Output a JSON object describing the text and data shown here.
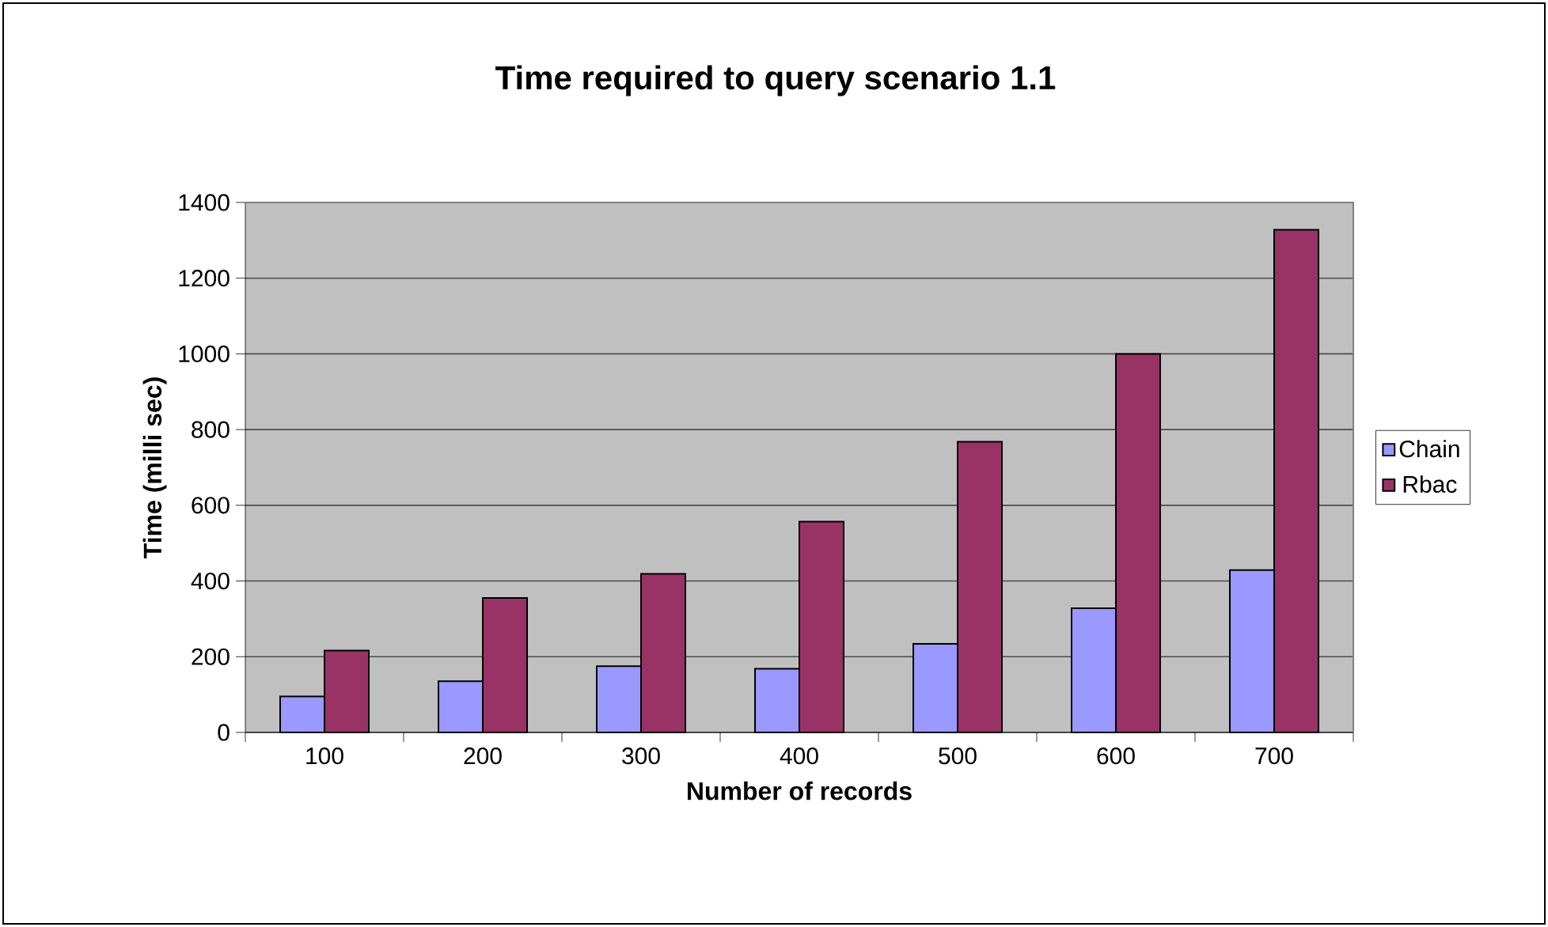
{
  "chart_data": {
    "type": "bar",
    "title": "Time required to query scenario 1.1",
    "xlabel": "Number of records",
    "ylabel": "Time (milli sec)",
    "categories": [
      "100",
      "200",
      "300",
      "400",
      "500",
      "600",
      "700"
    ],
    "series": [
      {
        "name": "Chain",
        "color": "#9999ff",
        "values": [
          95,
          135,
          175,
          168,
          234,
          328,
          429
        ]
      },
      {
        "name": "Rbac",
        "color": "#993366",
        "values": [
          216,
          355,
          419,
          557,
          768,
          1000,
          1328
        ]
      }
    ],
    "ylim": [
      0,
      1400
    ],
    "yticks": [
      0,
      200,
      400,
      600,
      800,
      1000,
      1200,
      1400
    ],
    "grid": "y",
    "legend": "right"
  }
}
